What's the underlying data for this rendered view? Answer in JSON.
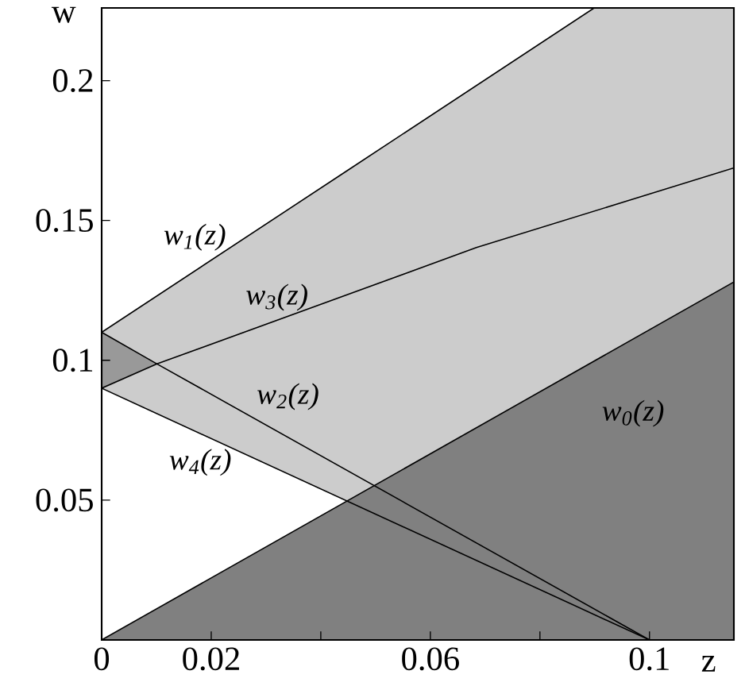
{
  "chart_data": {
    "type": "line",
    "xlabel": "z",
    "ylabel": "w",
    "xlim": [
      0,
      0.1154
    ],
    "ylim": [
      0,
      0.226
    ],
    "xticks": [
      {
        "value": 0,
        "label": "0"
      },
      0.02,
      {
        "value": 0.04,
        "label": null
      },
      0.06,
      {
        "value": 0.08,
        "label": null
      },
      {
        "value": 0.1,
        "label": "0.1"
      }
    ],
    "yticks": [
      0.05,
      {
        "value": 0.1,
        "label": "0.1"
      },
      0.15,
      {
        "value": 0.2,
        "label": "0.2"
      }
    ],
    "series": [
      {
        "name": "w$_{1}$(z)",
        "color": "#000000",
        "x": [
          0,
          0.0448,
          0.0899,
          0.1154
        ],
        "values": [
          0.11,
          0.1678,
          0.226,
          null
        ],
        "lower": [
          0.09,
          0.0497,
          0.0997,
          0.128
        ],
        "upper": [
          0.11,
          0.1678,
          0.226,
          0.226
        ]
      },
      {
        "name": "w$_{2}$(z)",
        "color": "#000000",
        "x": [
          0,
          0.0101,
          0.1
        ],
        "values": [
          0.11,
          0.0987,
          0
        ],
        "lower": [
          0.09,
          0.0987,
          null
        ],
        "upper": [
          0.11,
          0.0987,
          null
        ]
      },
      {
        "name": "w$_{3}$(z)",
        "color": "#000000",
        "x": [
          0,
          0.0101,
          0.0684,
          0.1154
        ],
        "values": [
          0.09,
          0.0987,
          0.1403,
          0.1688
        ]
      },
      {
        "name": "w$_{4}$(z)",
        "color": "#000000",
        "x": [
          0,
          0.1
        ],
        "values": [
          0.09,
          0
        ]
      },
      {
        "type": "area",
        "name": "w$_{0}$(z)",
        "color": "#808080",
        "x": [
          0,
          0.1154
        ],
        "values": [
          0,
          0.128
        ]
      }
    ]
  }
}
